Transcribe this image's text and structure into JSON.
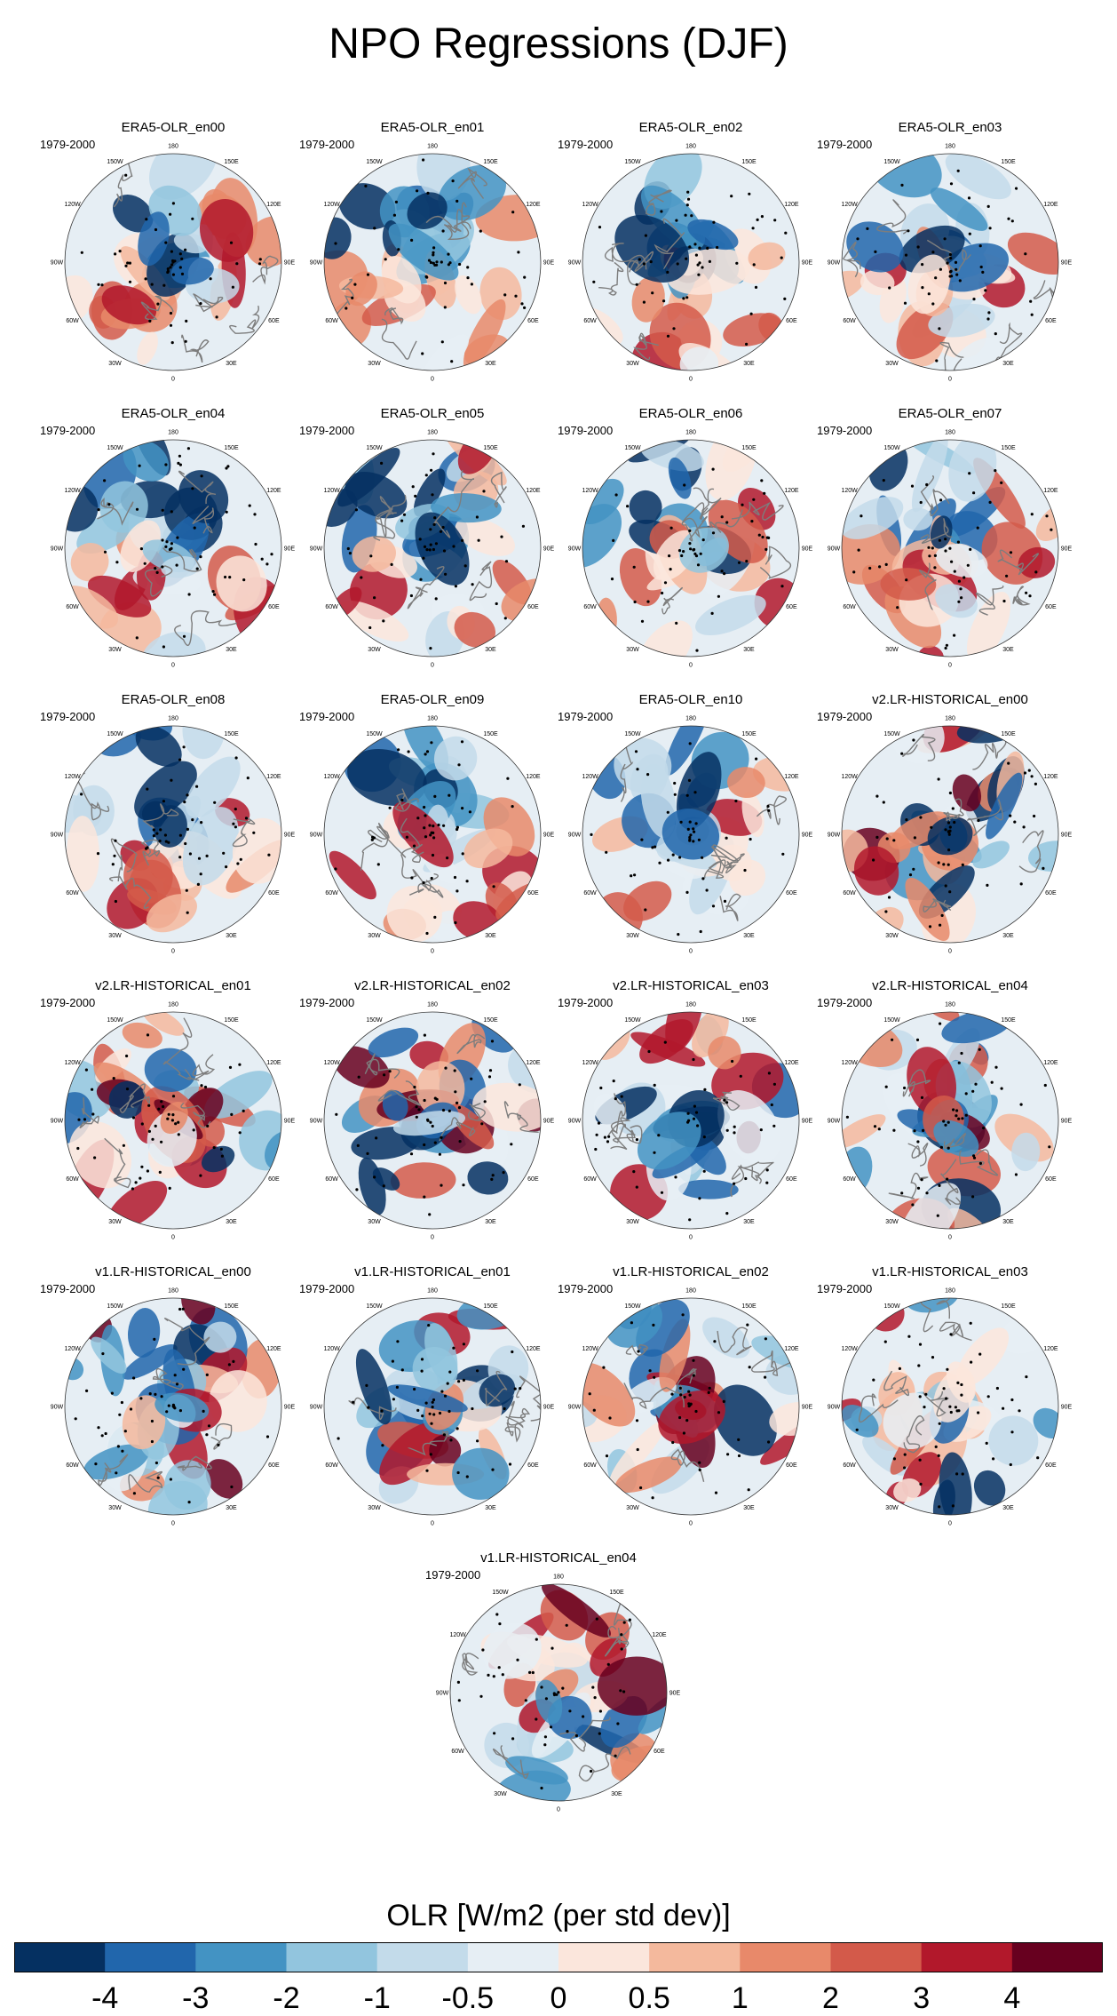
{
  "title": "NPO Regressions (DJF)",
  "period_label": "1979-2000",
  "longitude_labels": [
    "180",
    "150E",
    "120E",
    "90E",
    "60E",
    "30E",
    "0",
    "30W",
    "60W",
    "90W",
    "120W",
    "150W"
  ],
  "panels": [
    {
      "title": "ERA5-OLR_en00"
    },
    {
      "title": "ERA5-OLR_en01"
    },
    {
      "title": "ERA5-OLR_en02"
    },
    {
      "title": "ERA5-OLR_en03"
    },
    {
      "title": "ERA5-OLR_en04"
    },
    {
      "title": "ERA5-OLR_en05"
    },
    {
      "title": "ERA5-OLR_en06"
    },
    {
      "title": "ERA5-OLR_en07"
    },
    {
      "title": "ERA5-OLR_en08"
    },
    {
      "title": "ERA5-OLR_en09"
    },
    {
      "title": "ERA5-OLR_en10"
    },
    {
      "title": "v2.LR-HISTORICAL_en00"
    },
    {
      "title": "v2.LR-HISTORICAL_en01"
    },
    {
      "title": "v2.LR-HISTORICAL_en02"
    },
    {
      "title": "v2.LR-HISTORICAL_en03"
    },
    {
      "title": "v2.LR-HISTORICAL_en04"
    },
    {
      "title": "v1.LR-HISTORICAL_en00"
    },
    {
      "title": "v1.LR-HISTORICAL_en01"
    },
    {
      "title": "v1.LR-HISTORICAL_en02"
    },
    {
      "title": "v1.LR-HISTORICAL_en03"
    },
    {
      "title": "v1.LR-HISTORICAL_en04"
    }
  ],
  "colorbar": {
    "title": "OLR [W/m2 (per std dev)]",
    "colors": [
      "#053061",
      "#2166ac",
      "#4393c3",
      "#92c5de",
      "#c3dbea",
      "#e6eef4",
      "#fbe6dc",
      "#f4b99d",
      "#e8896a",
      "#d35a4a",
      "#b2182b",
      "#67001f"
    ],
    "labels": [
      "-4",
      "-3",
      "-2",
      "-1",
      "-0.5",
      "0",
      "0.5",
      "1",
      "2",
      "3",
      "4"
    ]
  }
}
